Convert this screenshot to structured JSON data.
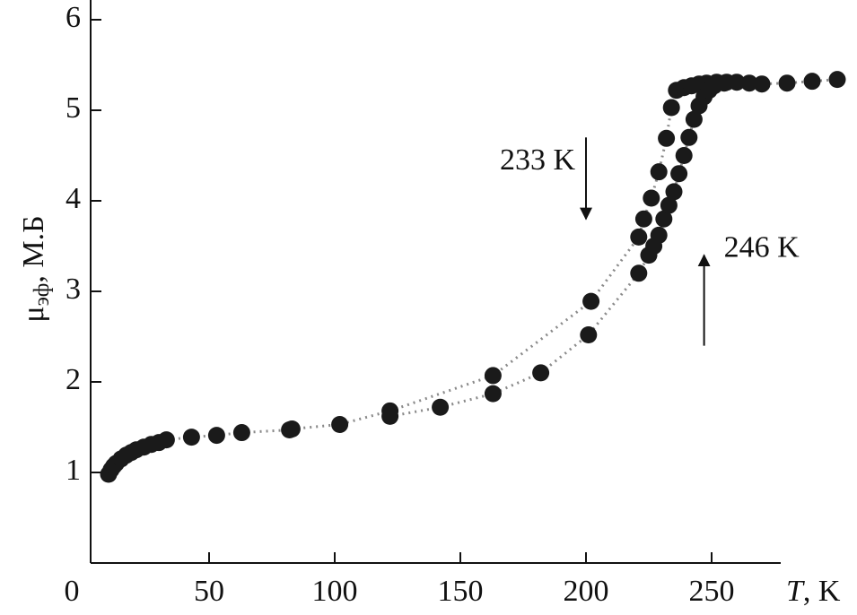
{
  "chart_data": {
    "type": "scatter",
    "xlabel_italic": "T",
    "xlabel_rest": ", K",
    "ylabel": "μ",
    "ylabel_sub": "эф",
    "ylabel_rest": ", М.Б",
    "xlim": [
      0,
      305
    ],
    "xticks": [
      0,
      50,
      100,
      150,
      200,
      250
    ],
    "ylim": [
      0,
      6
    ],
    "yticks": [
      1,
      2,
      3,
      4,
      5,
      6
    ],
    "annotations": [
      {
        "text": "233 K",
        "x": 200,
        "y_from": 4.7,
        "y_to": 3.8,
        "direction": "down"
      },
      {
        "text": "246 K",
        "x": 247,
        "y_from": 2.4,
        "y_to": 3.4,
        "direction": "up"
      }
    ],
    "line_color": "#8a8a8a",
    "series": [
      {
        "color": "#1a1a1a",
        "x": [
          10,
          11,
          12,
          13,
          15,
          17,
          19,
          21,
          24,
          27,
          30,
          33,
          43,
          53,
          63,
          82,
          83,
          102,
          122,
          163,
          202,
          221,
          223,
          226,
          229,
          232,
          234,
          236,
          239,
          242,
          245,
          248,
          252,
          256,
          260,
          265,
          270,
          280,
          290,
          300
        ],
        "values": [
          0.98,
          1.03,
          1.07,
          1.1,
          1.15,
          1.19,
          1.22,
          1.25,
          1.28,
          1.31,
          1.33,
          1.36,
          1.39,
          1.41,
          1.44,
          1.47,
          1.48,
          1.53,
          1.68,
          2.07,
          2.89,
          3.6,
          3.8,
          4.03,
          4.32,
          4.69,
          5.03,
          5.22,
          5.25,
          5.27,
          5.29,
          5.3,
          5.31,
          5.31,
          5.31,
          5.3,
          5.29,
          5.3,
          5.32,
          5.34
        ]
      },
      {
        "color": "#1a1a1a",
        "x": [
          122,
          142,
          163,
          182,
          201,
          221,
          225,
          227,
          229,
          231,
          233,
          235,
          237,
          239,
          241,
          243,
          245,
          247,
          249,
          251,
          255
        ],
        "values": [
          1.62,
          1.72,
          1.87,
          2.1,
          2.52,
          3.2,
          3.4,
          3.5,
          3.62,
          3.8,
          3.95,
          4.1,
          4.3,
          4.5,
          4.7,
          4.9,
          5.05,
          5.15,
          5.22,
          5.27,
          5.3
        ]
      }
    ]
  }
}
